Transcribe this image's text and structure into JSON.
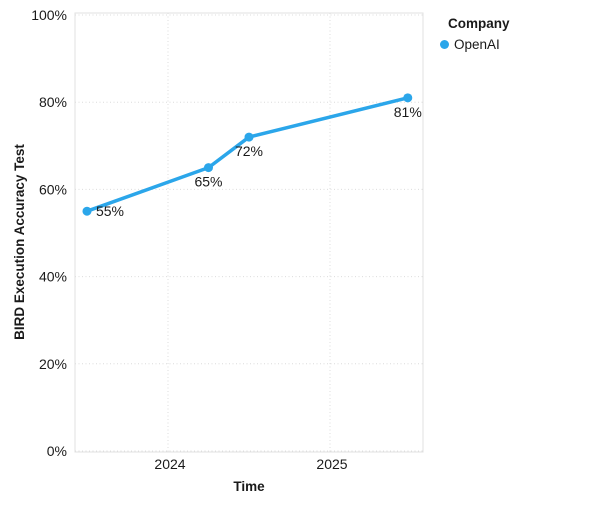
{
  "chart_data": {
    "type": "line",
    "xlabel": "Time",
    "ylabel": "BIRD Execution Accuracy Test",
    "x_ticks": [
      "2024",
      "2025"
    ],
    "x_tick_values": [
      2024,
      2025
    ],
    "y_ticks": [
      "0%",
      "20%",
      "40%",
      "60%",
      "80%",
      "100%"
    ],
    "y_tick_values": [
      0,
      20,
      40,
      60,
      80,
      100
    ],
    "xlim": [
      2023.426,
      2025.574
    ],
    "ylim": [
      0,
      100
    ],
    "grid": "dotted",
    "legend_position": "top-right",
    "series": [
      {
        "name": "OpenAI",
        "color": "#2BA6EA",
        "x": [
          2023.5,
          2024.25,
          2024.5,
          2025.48
        ],
        "values": [
          55,
          65,
          72,
          81
        ],
        "point_labels": [
          "55%",
          "65%",
          "72%",
          "81%"
        ]
      }
    ]
  },
  "legend": {
    "title": "Company",
    "items": [
      {
        "label": "OpenAI",
        "color": "#2BA6EA"
      }
    ]
  },
  "colors": {
    "accent": "#2BA6EA",
    "grid": "#dcdcdc",
    "plot_border": "#e0e0e0",
    "text": "#1a1a1a",
    "background": "#ffffff"
  }
}
